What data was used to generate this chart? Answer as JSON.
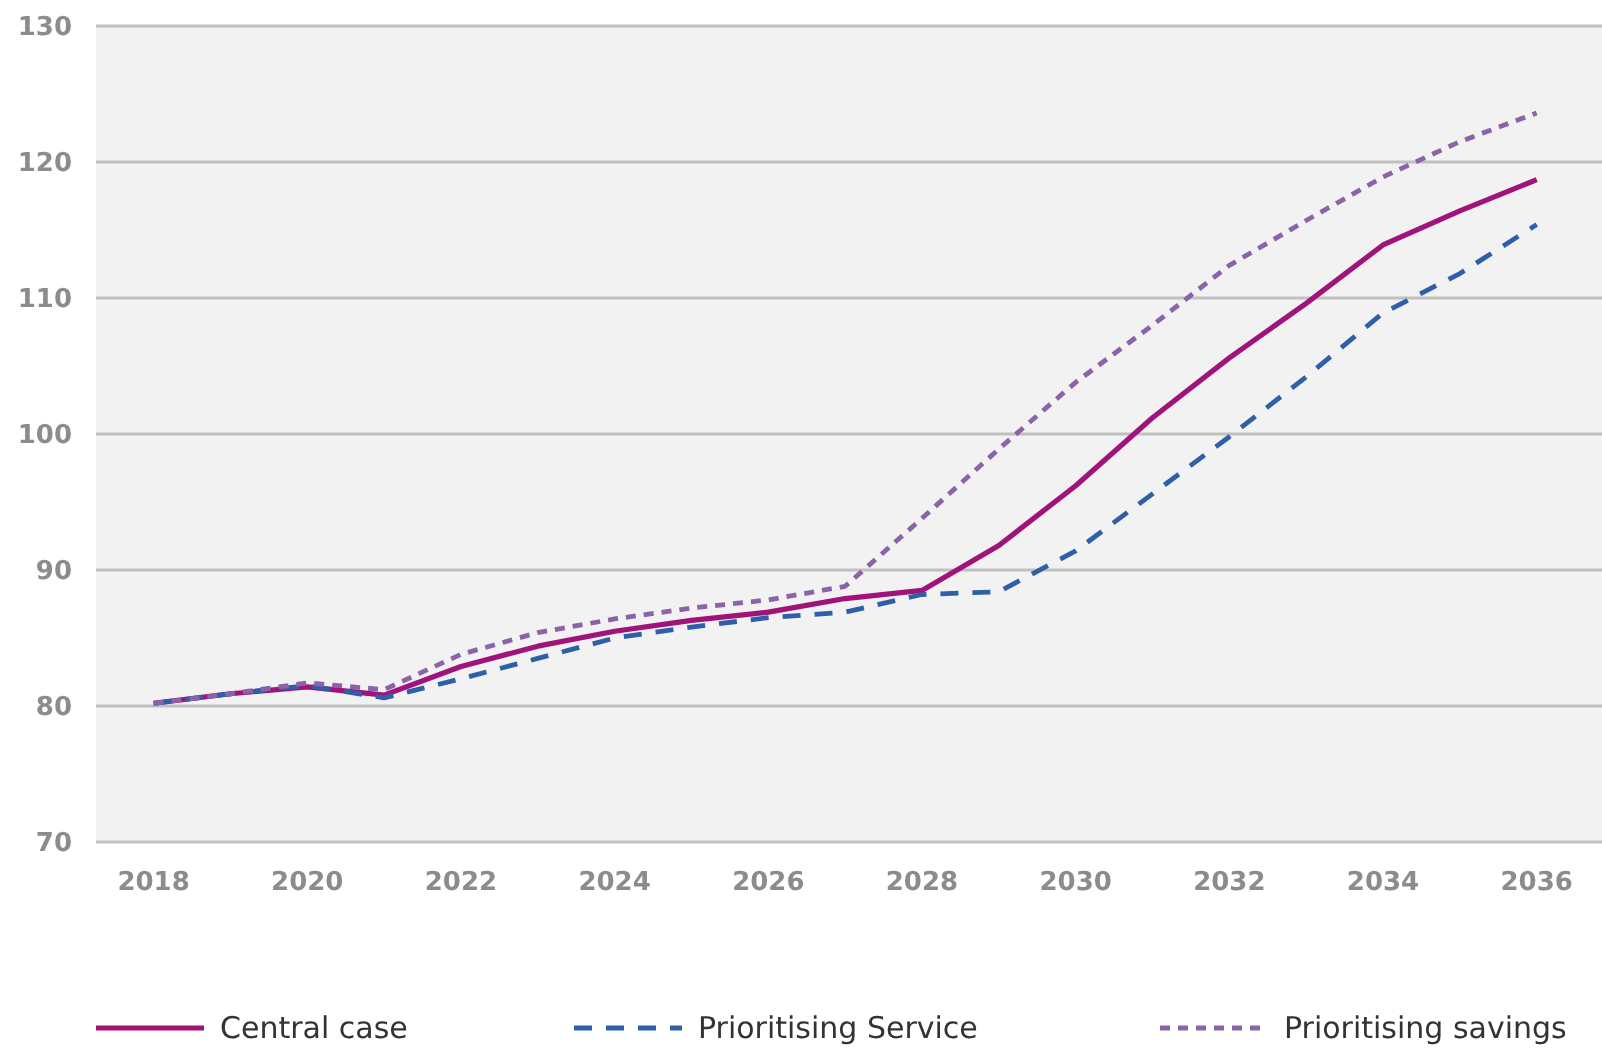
{
  "chart_data": {
    "type": "line",
    "x": [
      2018,
      2019,
      2020,
      2021,
      2022,
      2023,
      2024,
      2025,
      2026,
      2027,
      2028,
      2029,
      2030,
      2031,
      2032,
      2033,
      2034,
      2035,
      2036
    ],
    "series": [
      {
        "name": "Central case",
        "color": "#a0137a",
        "line_style": "solid",
        "values": [
          80.2,
          80.9,
          81.4,
          80.8,
          82.9,
          84.4,
          85.5,
          86.3,
          86.9,
          87.9,
          88.5,
          91.8,
          96.2,
          101.2,
          105.6,
          109.6,
          113.9,
          116.4,
          118.7
        ]
      },
      {
        "name": "Prioritising Service",
        "color": "#2e5fa8",
        "line_style": "dashed",
        "values": [
          80.2,
          80.9,
          81.5,
          80.6,
          82.0,
          83.5,
          85.0,
          85.8,
          86.5,
          86.9,
          88.2,
          88.4,
          91.4,
          95.6,
          99.8,
          104.2,
          108.9,
          111.8,
          115.4
        ]
      },
      {
        "name": "Prioritising savings",
        "color": "#8a63a8",
        "line_style": "dotted",
        "values": [
          80.2,
          80.9,
          81.7,
          81.2,
          83.8,
          85.4,
          86.4,
          87.2,
          87.8,
          88.8,
          93.8,
          98.9,
          103.8,
          108.0,
          112.4,
          115.7,
          118.9,
          121.5,
          123.6
        ]
      }
    ],
    "xlim": [
      2017.25,
      2036.85
    ],
    "xticks": [
      2018,
      2020,
      2022,
      2024,
      2026,
      2028,
      2030,
      2032,
      2034,
      2036
    ],
    "ylim": [
      70,
      130
    ],
    "yticks": [
      70,
      80,
      90,
      100,
      110,
      120,
      130
    ],
    "grid": "y",
    "legend": "bottom",
    "marker": "none"
  }
}
